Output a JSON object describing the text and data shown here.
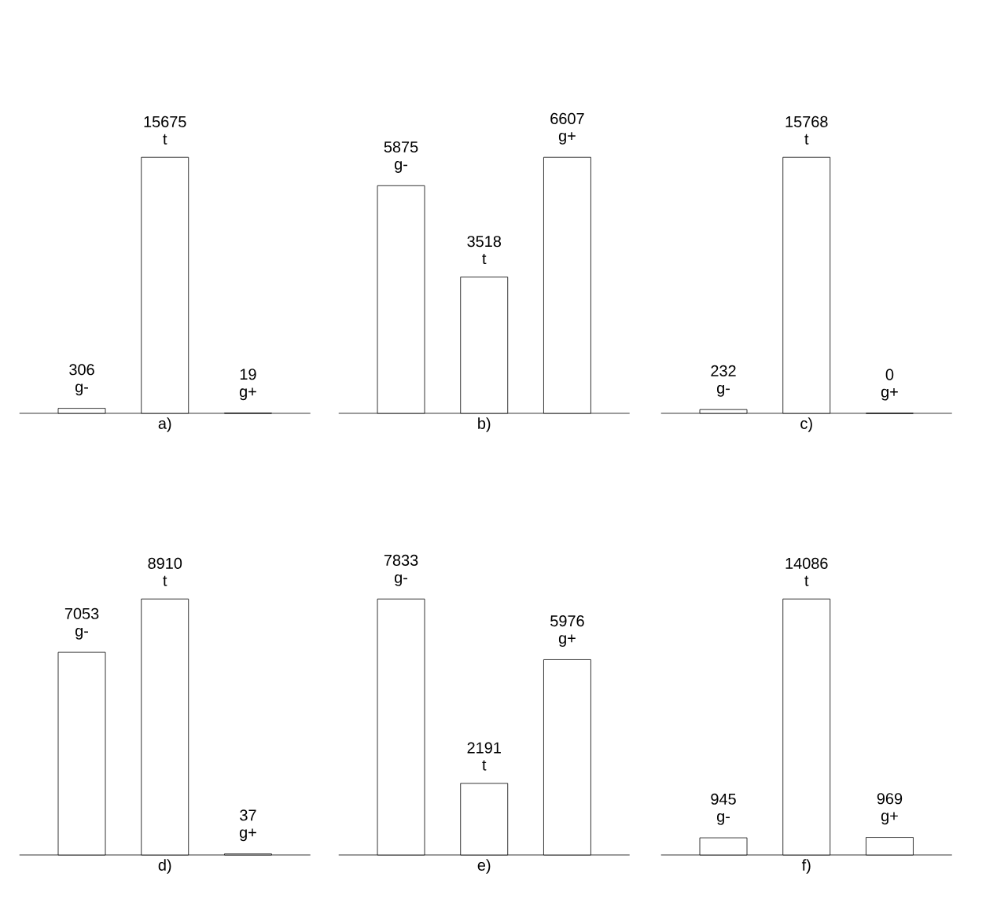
{
  "chart_data": [
    {
      "type": "bar",
      "xlabel": "a)",
      "categories": [
        "g-",
        "t",
        "g+"
      ],
      "values": [
        306,
        15675,
        19
      ],
      "color": "#ffffff",
      "data_labels": true
    },
    {
      "type": "bar",
      "xlabel": "b)",
      "categories": [
        "g-",
        "t",
        "g+"
      ],
      "values": [
        5875,
        3518,
        6607
      ],
      "color": "#ffffff",
      "data_labels": true
    },
    {
      "type": "bar",
      "xlabel": "c)",
      "categories": [
        "g-",
        "t",
        "g+"
      ],
      "values": [
        232,
        15768,
        0
      ],
      "color": "#ffffff",
      "data_labels": true
    },
    {
      "type": "bar",
      "xlabel": "d)",
      "categories": [
        "g-",
        "t",
        "g+"
      ],
      "values": [
        7053,
        8910,
        37
      ],
      "color": "#ffffff",
      "data_labels": true
    },
    {
      "type": "bar",
      "xlabel": "e)",
      "categories": [
        "g-",
        "t",
        "g+"
      ],
      "values": [
        7833,
        2191,
        5976
      ],
      "color": "#ffffff",
      "data_labels": true
    },
    {
      "type": "bar",
      "xlabel": "f)",
      "categories": [
        "g-",
        "t",
        "g+"
      ],
      "values": [
        945,
        14086,
        969
      ],
      "color": "#ffffff",
      "data_labels": true
    }
  ]
}
